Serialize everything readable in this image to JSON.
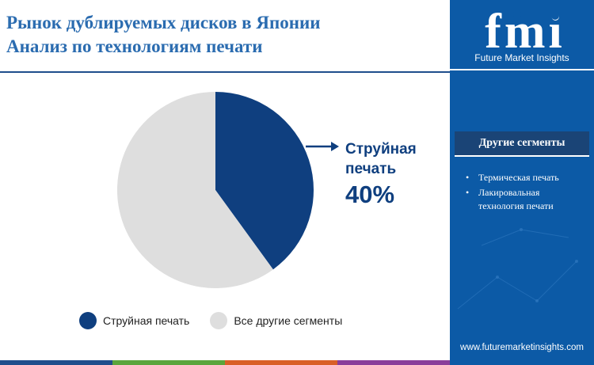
{
  "title_line1": "Рынок дублируемых дисков в Японии",
  "title_line2": "Анализ по технологиям печати",
  "chart_data": {
    "type": "pie",
    "title": "Рынок дублируемых дисков в Японии Анализ по технологиям печати",
    "slices": [
      {
        "name": "Струйная печать",
        "value": 40,
        "color": "#0f3f7f"
      },
      {
        "name": "Все другие сегменты",
        "value": 60,
        "color": "#dedede"
      }
    ],
    "start_angle_deg": 0,
    "direction": "clockwise",
    "legend_position": "bottom"
  },
  "callout": {
    "label": "Струйная печать",
    "value": "40%"
  },
  "legend": [
    {
      "label": "Струйная печать",
      "color": "#0f3f7f"
    },
    {
      "label": "Все другие сегменты",
      "color": "#dedede"
    }
  ],
  "sidebar": {
    "logo_text": "fmi",
    "brand_name": "Future Market Insights",
    "segments_title": "Другие сегменты",
    "segments": [
      "Термическая печать",
      "Лакировальная технология печати"
    ],
    "website": "www.futuremarketinsights.com"
  },
  "colors": {
    "accent_blue": "#0c5aa6",
    "dark_blue": "#0f3f7f",
    "title_blue": "#2b6cb0",
    "bottom_bar": [
      "#1f4e8c",
      "#5aa53c",
      "#d95f27",
      "#8a3d9a"
    ]
  }
}
